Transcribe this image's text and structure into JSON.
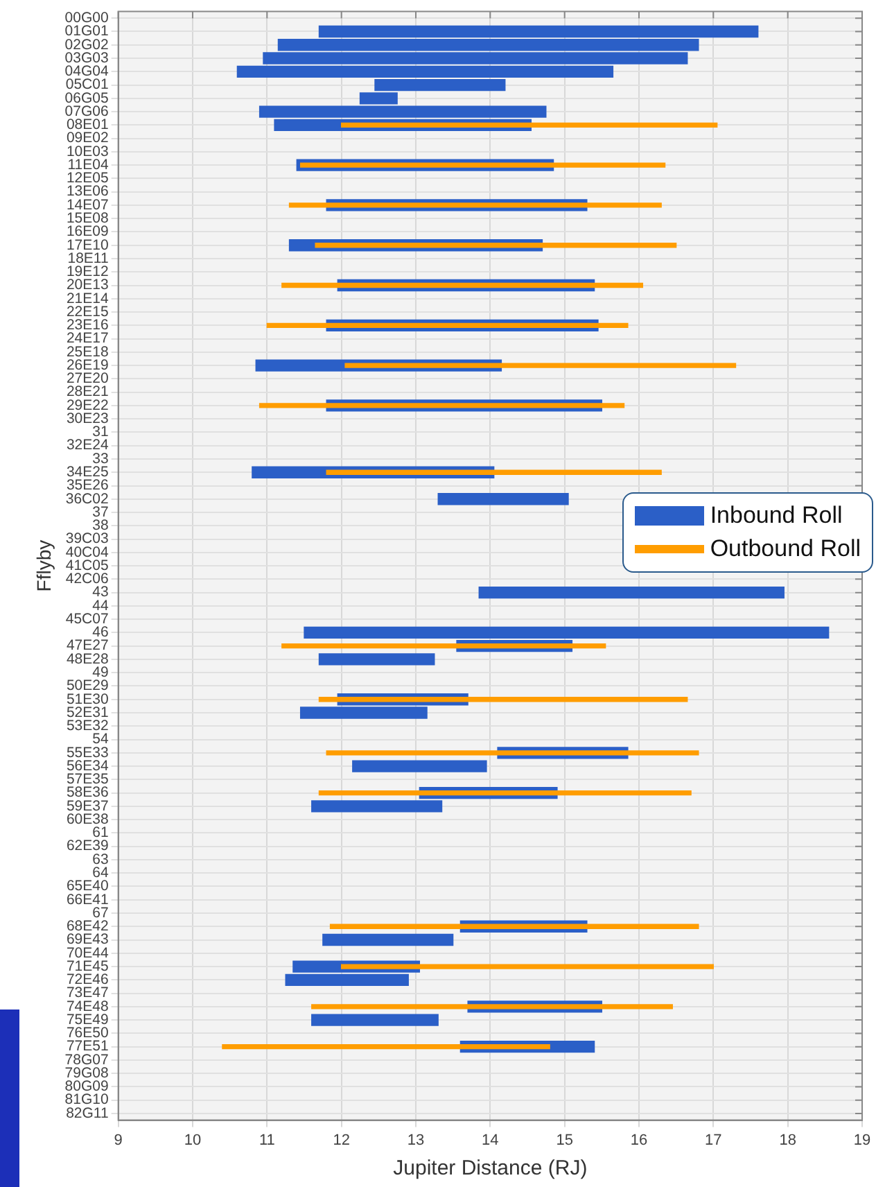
{
  "chart_data": {
    "type": "bar",
    "orientation": "horizontal",
    "xlabel": "Jupiter Distance (RJ)",
    "ylabel": "Fflyby",
    "categories": [
      "00G00",
      "01G01",
      "02G02",
      "03G03",
      "04G04",
      "05C01",
      "06G05",
      "07G06",
      "08E01",
      "09E02",
      "10E03",
      "11E04",
      "12E05",
      "13E06",
      "14E07",
      "15E08",
      "16E09",
      "17E10",
      "18E11",
      "19E12",
      "20E13",
      "21E14",
      "22E15",
      "23E16",
      "24E17",
      "25E18",
      "26E19",
      "27E20",
      "28E21",
      "29E22",
      "30E23",
      "31",
      "32E24",
      "33",
      "34E25",
      "35E26",
      "36C02",
      "37",
      "38",
      "39C03",
      "40C04",
      "41C05",
      "42C06",
      "43",
      "44",
      "45C07",
      "46",
      "47E27",
      "48E28",
      "49",
      "50E29",
      "51E30",
      "52E31",
      "53E32",
      "54",
      "55E33",
      "56E34",
      "57E35",
      "58E36",
      "59E37",
      "60E38",
      "61",
      "62E39",
      "63",
      "64",
      "65E40",
      "66E41",
      "67",
      "68E42",
      "69E43",
      "70E44",
      "71E45",
      "72E46",
      "73E47",
      "74E48",
      "75E49",
      "76E50",
      "77E51",
      "78G07",
      "79G08",
      "80G09",
      "81G10",
      "82G11"
    ],
    "series": [
      {
        "name": "Inbound Roll",
        "color": "#2b5fc7",
        "base": [
          null,
          11.7,
          11.15,
          10.95,
          10.6,
          12.45,
          12.25,
          10.9,
          11.1,
          null,
          null,
          11.4,
          null,
          null,
          11.8,
          null,
          null,
          11.3,
          null,
          null,
          11.95,
          null,
          null,
          11.8,
          null,
          null,
          10.85,
          null,
          null,
          11.8,
          null,
          null,
          null,
          null,
          10.8,
          null,
          13.3,
          null,
          null,
          null,
          null,
          null,
          null,
          13.85,
          null,
          null,
          11.5,
          13.55,
          11.7,
          null,
          null,
          11.95,
          11.45,
          null,
          null,
          14.1,
          12.15,
          null,
          13.05,
          11.6,
          null,
          null,
          null,
          null,
          null,
          null,
          null,
          null,
          13.6,
          11.75,
          null,
          11.35,
          11.25,
          null,
          13.7,
          11.6,
          null,
          13.6,
          null,
          null,
          null,
          null,
          null
        ],
        "values": [
          null,
          5.9,
          5.65,
          5.7,
          5.05,
          1.75,
          0.5,
          3.85,
          3.45,
          null,
          null,
          3.45,
          null,
          null,
          3.5,
          null,
          null,
          3.4,
          null,
          null,
          3.45,
          null,
          null,
          3.65,
          null,
          null,
          3.3,
          null,
          null,
          3.7,
          null,
          null,
          null,
          null,
          3.25,
          null,
          1.75,
          null,
          null,
          null,
          null,
          null,
          null,
          4.1,
          null,
          null,
          7.05,
          1.55,
          1.55,
          null,
          null,
          1.75,
          1.7,
          null,
          null,
          1.75,
          1.8,
          null,
          1.85,
          1.75,
          null,
          null,
          null,
          null,
          null,
          null,
          null,
          null,
          1.7,
          1.75,
          null,
          1.7,
          1.65,
          null,
          1.8,
          1.7,
          null,
          1.8,
          null,
          null,
          null,
          null,
          null
        ]
      },
      {
        "name": "Outbound Roll",
        "color": "#ff9d00",
        "base": [
          null,
          null,
          null,
          null,
          null,
          null,
          null,
          null,
          12.0,
          null,
          null,
          11.45,
          null,
          null,
          11.3,
          null,
          null,
          11.65,
          null,
          null,
          11.2,
          null,
          null,
          11.0,
          null,
          null,
          12.05,
          null,
          null,
          10.9,
          null,
          null,
          null,
          null,
          11.8,
          null,
          null,
          null,
          null,
          null,
          null,
          null,
          null,
          null,
          null,
          null,
          null,
          11.2,
          null,
          null,
          null,
          11.7,
          null,
          null,
          null,
          11.8,
          null,
          null,
          11.7,
          null,
          null,
          null,
          null,
          null,
          null,
          null,
          null,
          null,
          11.85,
          null,
          null,
          12.0,
          null,
          null,
          11.6,
          null,
          null,
          10.4,
          null,
          null,
          null,
          null,
          null
        ],
        "values": [
          null,
          null,
          null,
          null,
          null,
          null,
          null,
          null,
          5.05,
          null,
          null,
          4.9,
          null,
          null,
          5.0,
          null,
          null,
          4.85,
          null,
          null,
          4.85,
          null,
          null,
          4.85,
          null,
          null,
          5.25,
          null,
          null,
          4.9,
          null,
          null,
          null,
          null,
          4.5,
          null,
          null,
          null,
          null,
          null,
          null,
          null,
          null,
          null,
          null,
          null,
          null,
          4.35,
          null,
          null,
          null,
          4.95,
          null,
          null,
          null,
          5.0,
          null,
          null,
          5.0,
          null,
          null,
          null,
          null,
          null,
          null,
          null,
          null,
          null,
          4.95,
          null,
          null,
          5.0,
          null,
          null,
          4.85,
          null,
          null,
          4.4,
          null,
          null,
          null,
          null,
          null
        ]
      }
    ],
    "xlim": [
      9,
      19
    ],
    "xticks": [
      9,
      10,
      11,
      12,
      13,
      14,
      15,
      16,
      17,
      18,
      19
    ],
    "grid": true,
    "legend": "right"
  }
}
